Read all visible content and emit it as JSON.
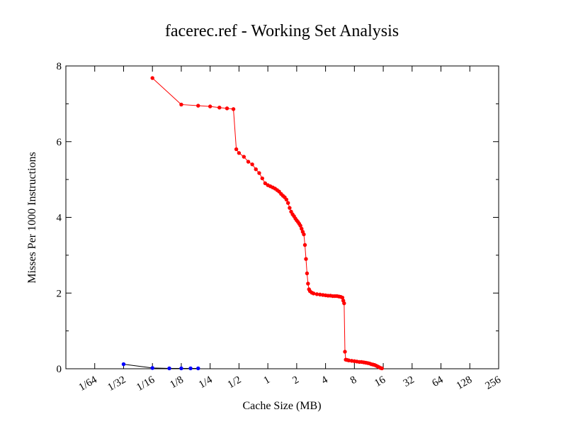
{
  "chart_data": {
    "type": "line",
    "title": "facerec.ref - Working Set Analysis",
    "xlabel": "Cache Size (MB)",
    "ylabel": "Misses Per 1000 Instructions",
    "x_scale": "log2",
    "xlim": [
      0.0078125,
      256
    ],
    "ylim": [
      0,
      8
    ],
    "x_ticks": [
      {
        "value": 0.015625,
        "label": "1/64"
      },
      {
        "value": 0.03125,
        "label": "1/32"
      },
      {
        "value": 0.0625,
        "label": "1/16"
      },
      {
        "value": 0.125,
        "label": "1/8"
      },
      {
        "value": 0.25,
        "label": "1/4"
      },
      {
        "value": 0.5,
        "label": "1/2"
      },
      {
        "value": 1,
        "label": "1"
      },
      {
        "value": 2,
        "label": "2"
      },
      {
        "value": 4,
        "label": "4"
      },
      {
        "value": 8,
        "label": "8"
      },
      {
        "value": 16,
        "label": "16"
      },
      {
        "value": 32,
        "label": "32"
      },
      {
        "value": 64,
        "label": "64"
      },
      {
        "value": 128,
        "label": "128"
      },
      {
        "value": 256,
        "label": "256"
      }
    ],
    "y_ticks": [
      {
        "value": 0,
        "label": "0"
      },
      {
        "value": 2,
        "label": "2"
      },
      {
        "value": 4,
        "label": "4"
      },
      {
        "value": 6,
        "label": "6"
      },
      {
        "value": 8,
        "label": "8"
      }
    ],
    "y_minor_step": 1,
    "grid": false,
    "series": [
      {
        "color": "#ff0000",
        "points": [
          [
            0.0625,
            7.68
          ],
          [
            0.125,
            6.98
          ],
          [
            0.1875,
            6.95
          ],
          [
            0.25,
            6.93
          ],
          [
            0.3125,
            6.9
          ],
          [
            0.375,
            6.88
          ],
          [
            0.4375,
            6.86
          ],
          [
            0.46875,
            5.8
          ],
          [
            0.5,
            5.7
          ],
          [
            0.5625,
            5.6
          ],
          [
            0.625,
            5.47
          ],
          [
            0.6875,
            5.4
          ],
          [
            0.75,
            5.27
          ],
          [
            0.8125,
            5.17
          ],
          [
            0.875,
            5.03
          ],
          [
            0.9375,
            4.9
          ],
          [
            1.0,
            4.85
          ],
          [
            1.0625,
            4.82
          ],
          [
            1.125,
            4.79
          ],
          [
            1.1875,
            4.76
          ],
          [
            1.25,
            4.72
          ],
          [
            1.3125,
            4.68
          ],
          [
            1.375,
            4.62
          ],
          [
            1.4375,
            4.57
          ],
          [
            1.5,
            4.53
          ],
          [
            1.5625,
            4.47
          ],
          [
            1.625,
            4.38
          ],
          [
            1.6875,
            4.25
          ],
          [
            1.75,
            4.15
          ],
          [
            1.8125,
            4.08
          ],
          [
            1.875,
            4.03
          ],
          [
            1.9375,
            3.97
          ],
          [
            2.0,
            3.92
          ],
          [
            2.0625,
            3.88
          ],
          [
            2.125,
            3.83
          ],
          [
            2.1875,
            3.78
          ],
          [
            2.25,
            3.7
          ],
          [
            2.3125,
            3.62
          ],
          [
            2.375,
            3.55
          ],
          [
            2.4375,
            3.27
          ],
          [
            2.5,
            2.9
          ],
          [
            2.5625,
            2.52
          ],
          [
            2.625,
            2.25
          ],
          [
            2.6875,
            2.1
          ],
          [
            2.75,
            2.05
          ],
          [
            2.875,
            2.01
          ],
          [
            3.0,
            1.99
          ],
          [
            3.25,
            1.97
          ],
          [
            3.5,
            1.96
          ],
          [
            3.75,
            1.95
          ],
          [
            4.0,
            1.94
          ],
          [
            4.25,
            1.93
          ],
          [
            4.5,
            1.93
          ],
          [
            4.75,
            1.92
          ],
          [
            5.0,
            1.92
          ],
          [
            5.25,
            1.92
          ],
          [
            5.5,
            1.91
          ],
          [
            5.75,
            1.9
          ],
          [
            6.0,
            1.88
          ],
          [
            6.125,
            1.8
          ],
          [
            6.25,
            1.73
          ],
          [
            6.375,
            0.45
          ],
          [
            6.5,
            0.24
          ],
          [
            6.75,
            0.23
          ],
          [
            7.0,
            0.22
          ],
          [
            7.5,
            0.21
          ],
          [
            8.0,
            0.2
          ],
          [
            8.5,
            0.19
          ],
          [
            9.0,
            0.18
          ],
          [
            9.5,
            0.18
          ],
          [
            10.0,
            0.17
          ],
          [
            10.5,
            0.16
          ],
          [
            11.0,
            0.15
          ],
          [
            11.5,
            0.14
          ],
          [
            12.0,
            0.12
          ],
          [
            12.5,
            0.11
          ],
          [
            13.0,
            0.1
          ],
          [
            13.5,
            0.08
          ],
          [
            14.0,
            0.06
          ],
          [
            14.5,
            0.04
          ],
          [
            15.0,
            0.02
          ],
          [
            15.5,
            0.01
          ]
        ]
      },
      {
        "color": "#0000ff",
        "line_color": "#000000",
        "points": [
          [
            0.03125,
            0.12
          ],
          [
            0.0625,
            0.02
          ],
          [
            0.09375,
            0.01
          ],
          [
            0.125,
            0.01
          ],
          [
            0.15625,
            0.01
          ],
          [
            0.1875,
            0.01
          ]
        ]
      }
    ]
  }
}
